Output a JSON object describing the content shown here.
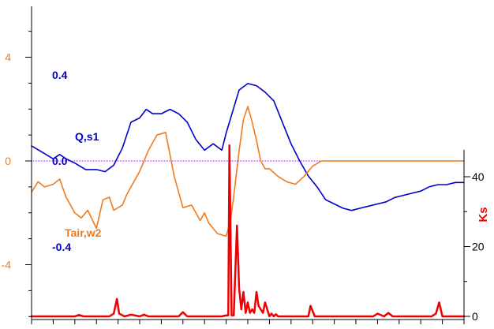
{
  "chart_data": {
    "type": "line",
    "title": "",
    "x_range": [
      0,
      20
    ],
    "left_axis": {
      "ticks": [
        -4,
        0,
        4
      ],
      "tick_labels": [
        "-4",
        "0",
        "4"
      ],
      "range": [
        -6,
        6
      ],
      "color": "#f07b1e"
    },
    "inner_axis": {
      "ticks": [
        -0.4,
        0.0,
        0.4
      ],
      "tick_labels": [
        "-0.4",
        "0.0",
        "0.4"
      ],
      "range": [
        -0.6,
        0.6
      ],
      "color": "#0000cc"
    },
    "right_axis": {
      "ticks": [
        0,
        20,
        40
      ],
      "tick_labels": [
        "0",
        "20",
        "40"
      ],
      "range": [
        0,
        50
      ],
      "label": "Ks",
      "color": "#ee0000"
    },
    "zero_line_color": "#8a2be2",
    "series": [
      {
        "name": "Q,s1",
        "axis": "inner",
        "color": "#0000cc",
        "x": [
          0,
          0.5,
          1.0,
          1.3,
          1.6,
          2.0,
          2.5,
          3.0,
          3.4,
          3.8,
          4.2,
          4.6,
          5.0,
          5.3,
          5.6,
          6.0,
          6.4,
          6.8,
          7.2,
          7.6,
          8.0,
          8.4,
          8.8,
          9.0,
          9.3,
          9.6,
          10.0,
          10.4,
          10.8,
          11.2,
          11.6,
          12.0,
          12.4,
          12.8,
          13.2,
          13.6,
          14.0,
          14.4,
          14.8,
          15.2,
          15.6,
          16.0,
          16.4,
          16.8,
          17.2,
          17.6,
          18.0,
          18.4,
          18.8,
          19.2,
          19.6,
          20.0
        ],
        "y": [
          0.07,
          0.04,
          0.01,
          0.03,
          0.01,
          -0.01,
          -0.04,
          -0.04,
          -0.05,
          -0.02,
          0.06,
          0.18,
          0.2,
          0.24,
          0.22,
          0.22,
          0.24,
          0.22,
          0.18,
          0.1,
          0.05,
          0.08,
          0.05,
          0.13,
          0.23,
          0.33,
          0.36,
          0.35,
          0.32,
          0.28,
          0.18,
          0.08,
          0.0,
          -0.07,
          -0.12,
          -0.18,
          -0.2,
          -0.22,
          -0.23,
          -0.22,
          -0.21,
          -0.2,
          -0.19,
          -0.17,
          -0.16,
          -0.15,
          -0.14,
          -0.12,
          -0.11,
          -0.11,
          -0.1,
          -0.1
        ]
      },
      {
        "name": "Tair,w2",
        "axis": "left",
        "color": "#f07b1e",
        "x": [
          0,
          0.3,
          0.6,
          1.0,
          1.3,
          1.6,
          2.0,
          2.3,
          2.6,
          3.0,
          3.3,
          3.6,
          3.8,
          4.0,
          4.2,
          4.4,
          4.6,
          5.0,
          5.4,
          5.8,
          6.2,
          6.6,
          7.0,
          7.4,
          7.8,
          8.0,
          8.2,
          8.6,
          9.0,
          9.2,
          9.4,
          9.6,
          9.8,
          10.0,
          10.2,
          10.4,
          10.6,
          10.8,
          11.0,
          11.4,
          11.8,
          12.2,
          12.6,
          13.0,
          13.4,
          13.8,
          14.2,
          14.6,
          15.0,
          16.0,
          17.0,
          18.0,
          19.0,
          20.0
        ],
        "y": [
          -1.2,
          -0.8,
          -1.0,
          -0.9,
          -0.7,
          -1.4,
          -2.0,
          -2.2,
          -1.9,
          -2.6,
          -1.5,
          -1.4,
          -1.9,
          -1.8,
          -1.7,
          -1.3,
          -1.0,
          -0.4,
          0.4,
          1.0,
          1.1,
          -0.6,
          -1.8,
          -1.7,
          -2.3,
          -2.0,
          -2.4,
          -2.8,
          -2.9,
          -2.3,
          -1.0,
          0.4,
          1.6,
          2.1,
          1.5,
          0.8,
          0.0,
          -0.3,
          -0.3,
          -0.6,
          -0.8,
          -0.9,
          -0.6,
          -0.2,
          0.0,
          0.0,
          0.0,
          0.0,
          0.0,
          0.0,
          0.0,
          0.0,
          0.0,
          0.0
        ]
      },
      {
        "name": "Ks",
        "axis": "right",
        "color": "#ee0000",
        "x": [
          0,
          2.0,
          2.2,
          2.4,
          3.6,
          3.8,
          3.95,
          4.05,
          4.3,
          4.6,
          5.0,
          5.2,
          5.4,
          6.8,
          7.0,
          7.2,
          8.8,
          9.0,
          9.1,
          9.15,
          9.25,
          9.35,
          9.5,
          9.6,
          9.7,
          9.8,
          9.9,
          10.0,
          10.1,
          10.2,
          10.3,
          10.4,
          10.5,
          10.6,
          10.7,
          10.8,
          11.0,
          11.1,
          11.2,
          11.3,
          11.4,
          11.6,
          12.8,
          12.9,
          13.1,
          13.3,
          15.8,
          16.0,
          16.3,
          16.5,
          16.7,
          18.5,
          18.7,
          18.85,
          19.0,
          20.0
        ],
        "y": [
          0,
          0,
          0.4,
          0,
          0,
          0.8,
          5,
          0.8,
          0,
          0.5,
          0,
          0.5,
          0,
          0,
          1.2,
          0,
          0,
          0.3,
          0.3,
          49,
          0.3,
          0.3,
          26,
          8,
          2,
          7,
          1,
          4,
          1,
          2,
          1,
          7,
          3,
          2,
          1,
          4,
          0,
          0.8,
          0,
          0.6,
          0,
          0,
          0,
          3,
          0,
          0,
          0,
          0.8,
          0,
          1,
          0,
          0,
          0.8,
          4,
          0,
          0
        ]
      }
    ],
    "annotations": [
      {
        "text": "Q,s1",
        "color": "#0000cc"
      },
      {
        "text": "Tair,w2",
        "color": "#f07b1e"
      }
    ]
  }
}
